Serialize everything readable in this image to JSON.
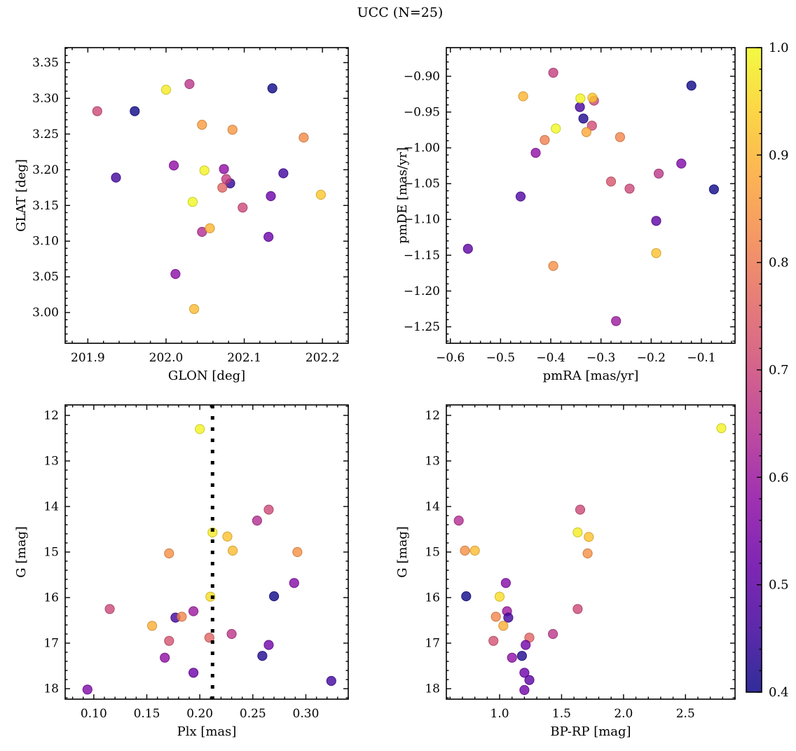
{
  "title": "UCC (N=25)",
  "colorbar": {
    "min": 0.4,
    "max": 1.0,
    "tick_values": [
      1.0,
      0.9,
      0.8,
      0.7,
      0.6,
      0.5,
      0.4
    ],
    "tick_labels": [
      "1.0",
      "0.9",
      "0.8",
      "0.7",
      "0.6",
      "0.5",
      "0.4"
    ],
    "minor_step": 0.02,
    "colormap": "plasma",
    "plasma_stops": [
      "#0d0887",
      "#41049d",
      "#6a00a8",
      "#8f0da4",
      "#b12a90",
      "#cc4778",
      "#e16462",
      "#f2844b",
      "#fca636",
      "#fcce25",
      "#f0f921"
    ]
  },
  "chart_data": [
    {
      "type": "scatter",
      "name": "position-panel",
      "xlabel": "GLON [deg]",
      "ylabel": "GLAT [deg]",
      "xlim": [
        201.871,
        202.233
      ],
      "ylim": [
        2.957,
        3.371
      ],
      "xticks": [
        201.9,
        202.0,
        202.1,
        202.2
      ],
      "xtick_labels": [
        "201.9",
        "202.0",
        "202.1",
        "202.2"
      ],
      "yticks": [
        3.0,
        3.05,
        3.1,
        3.15,
        3.2,
        3.25,
        3.3,
        3.35
      ],
      "ytick_labels": [
        "3.00",
        "3.05",
        "3.10",
        "3.15",
        "3.20",
        "3.25",
        "3.30",
        "3.35"
      ],
      "x_minor_step": 0.02,
      "y_minor_step": 0.01,
      "points": [
        [
          201.912,
          3.282,
          0.7
        ],
        [
          201.936,
          3.189,
          0.46
        ],
        [
          201.96,
          3.282,
          0.4
        ],
        [
          202.0,
          3.312,
          0.98
        ],
        [
          202.03,
          3.32,
          0.66
        ],
        [
          202.136,
          3.314,
          0.4
        ],
        [
          202.046,
          3.263,
          0.86
        ],
        [
          202.085,
          3.256,
          0.85
        ],
        [
          202.176,
          3.245,
          0.83
        ],
        [
          202.01,
          3.206,
          0.58
        ],
        [
          202.074,
          3.201,
          0.58
        ],
        [
          202.049,
          3.199,
          0.99
        ],
        [
          202.15,
          3.195,
          0.46
        ],
        [
          202.082,
          3.181,
          0.44
        ],
        [
          202.077,
          3.187,
          0.68
        ],
        [
          202.072,
          3.175,
          0.76
        ],
        [
          202.198,
          3.165,
          0.93
        ],
        [
          202.134,
          3.163,
          0.52
        ],
        [
          202.034,
          3.155,
          1.0
        ],
        [
          202.098,
          3.147,
          0.7
        ],
        [
          202.046,
          3.113,
          0.64
        ],
        [
          202.056,
          3.118,
          0.9
        ],
        [
          202.131,
          3.106,
          0.52
        ],
        [
          202.012,
          3.054,
          0.57
        ],
        [
          202.036,
          3.005,
          0.91
        ]
      ]
    },
    {
      "type": "scatter",
      "name": "proper-motion-panel",
      "xlabel": "pmRA [mas/yr]",
      "ylabel": "pmDE [mas/yr]",
      "xlim": [
        -0.608,
        -0.033
      ],
      "ylim": [
        -1.273,
        -0.86
      ],
      "xticks": [
        -0.6,
        -0.5,
        -0.4,
        -0.3,
        -0.2,
        -0.1
      ],
      "xtick_labels": [
        "−0.6",
        "−0.5",
        "−0.4",
        "−0.3",
        "−0.2",
        "−0.1"
      ],
      "yticks": [
        -1.25,
        -1.2,
        -1.15,
        -1.1,
        -1.05,
        -1.0,
        -0.95,
        -0.9
      ],
      "ytick_labels": [
        "−1.25",
        "−1.20",
        "−1.15",
        "−1.10",
        "−1.05",
        "−1.00",
        "−0.95",
        "−0.90"
      ],
      "x_minor_step": 0.02,
      "y_minor_step": 0.01,
      "points": [
        [
          -0.395,
          -0.895,
          0.68
        ],
        [
          -0.12,
          -0.913,
          0.4
        ],
        [
          -0.455,
          -0.928,
          0.9
        ],
        [
          -0.342,
          -0.943,
          0.47
        ],
        [
          -0.335,
          -0.959,
          0.42
        ],
        [
          -0.314,
          -0.934,
          0.7
        ],
        [
          -0.317,
          -0.93,
          0.93
        ],
        [
          -0.341,
          -0.931,
          0.99
        ],
        [
          -0.39,
          -0.973,
          1.0
        ],
        [
          -0.318,
          -0.969,
          0.71
        ],
        [
          -0.329,
          -0.978,
          0.88
        ],
        [
          -0.412,
          -0.989,
          0.81
        ],
        [
          -0.262,
          -0.985,
          0.82
        ],
        [
          -0.43,
          -1.007,
          0.58
        ],
        [
          -0.14,
          -1.022,
          0.55
        ],
        [
          -0.185,
          -1.036,
          0.66
        ],
        [
          -0.28,
          -1.047,
          0.73
        ],
        [
          -0.243,
          -1.057,
          0.7
        ],
        [
          -0.075,
          -1.058,
          0.4
        ],
        [
          -0.46,
          -1.068,
          0.48
        ],
        [
          -0.19,
          -1.102,
          0.5
        ],
        [
          -0.565,
          -1.141,
          0.5
        ],
        [
          -0.19,
          -1.147,
          0.92
        ],
        [
          -0.395,
          -1.165,
          0.84
        ],
        [
          -0.27,
          -1.242,
          0.6
        ]
      ]
    },
    {
      "type": "scatter",
      "name": "parallax-panel",
      "xlabel": "Plx [mas]",
      "ylabel": "G [mag]",
      "xlim": [
        0.073,
        0.34
      ],
      "ylim": [
        18.23,
        11.77
      ],
      "xticks": [
        0.1,
        0.15,
        0.2,
        0.25,
        0.3
      ],
      "xtick_labels": [
        "0.10",
        "0.15",
        "0.20",
        "0.25",
        "0.30"
      ],
      "yticks": [
        12,
        13,
        14,
        15,
        16,
        17,
        18
      ],
      "ytick_labels": [
        "12",
        "13",
        "14",
        "15",
        "16",
        "17",
        "18"
      ],
      "x_minor_step": 0.01,
      "y_minor_step": 0.2,
      "vline": {
        "x": 0.212,
        "style": "dotted",
        "color": "#000000"
      },
      "points": [
        [
          0.2,
          12.3,
          0.99
        ],
        [
          0.265,
          14.07,
          0.7
        ],
        [
          0.254,
          14.31,
          0.64
        ],
        [
          0.212,
          14.57,
          0.98
        ],
        [
          0.226,
          14.66,
          0.92
        ],
        [
          0.231,
          14.97,
          0.91
        ],
        [
          0.171,
          15.03,
          0.84
        ],
        [
          0.292,
          15.0,
          0.84
        ],
        [
          0.289,
          15.68,
          0.56
        ],
        [
          0.27,
          15.97,
          0.4
        ],
        [
          0.21,
          15.98,
          0.96
        ],
        [
          0.115,
          16.25,
          0.7
        ],
        [
          0.194,
          16.3,
          0.6
        ],
        [
          0.177,
          16.44,
          0.46
        ],
        [
          0.183,
          16.42,
          0.82
        ],
        [
          0.155,
          16.62,
          0.89
        ],
        [
          0.23,
          16.8,
          0.66
        ],
        [
          0.209,
          16.88,
          0.76
        ],
        [
          0.171,
          16.95,
          0.72
        ],
        [
          0.265,
          17.04,
          0.53
        ],
        [
          0.259,
          17.28,
          0.42
        ],
        [
          0.167,
          17.32,
          0.58
        ],
        [
          0.194,
          17.65,
          0.52
        ],
        [
          0.094,
          18.02,
          0.55
        ],
        [
          0.324,
          17.83,
          0.46
        ]
      ]
    },
    {
      "type": "scatter",
      "name": "cmd-panel",
      "xlabel": "BP-RP [mag]",
      "ylabel": "G [mag]",
      "xlim": [
        0.57,
        2.9
      ],
      "ylim": [
        18.23,
        11.77
      ],
      "xticks": [
        1.0,
        1.5,
        2.0,
        2.5
      ],
      "xtick_labels": [
        "1.0",
        "1.5",
        "2.0",
        "2.5"
      ],
      "yticks": [
        12,
        13,
        14,
        15,
        16,
        17,
        18
      ],
      "ytick_labels": [
        "12",
        "13",
        "14",
        "15",
        "16",
        "17",
        "18"
      ],
      "x_minor_step": 0.1,
      "y_minor_step": 0.2,
      "points": [
        [
          2.79,
          12.28,
          0.99
        ],
        [
          1.65,
          14.07,
          0.7
        ],
        [
          0.67,
          14.31,
          0.64
        ],
        [
          1.63,
          14.57,
          0.98
        ],
        [
          1.72,
          14.67,
          0.92
        ],
        [
          0.8,
          14.97,
          0.91
        ],
        [
          0.72,
          14.97,
          0.84
        ],
        [
          1.71,
          15.03,
          0.84
        ],
        [
          1.05,
          15.68,
          0.56
        ],
        [
          0.73,
          15.97,
          0.4
        ],
        [
          1.0,
          15.98,
          0.96
        ],
        [
          1.63,
          16.25,
          0.7
        ],
        [
          1.06,
          16.3,
          0.6
        ],
        [
          1.07,
          16.44,
          0.46
        ],
        [
          0.97,
          16.42,
          0.82
        ],
        [
          1.03,
          16.62,
          0.89
        ],
        [
          1.43,
          16.8,
          0.66
        ],
        [
          1.24,
          16.88,
          0.76
        ],
        [
          0.95,
          16.95,
          0.72
        ],
        [
          1.21,
          17.04,
          0.53
        ],
        [
          1.18,
          17.28,
          0.42
        ],
        [
          1.1,
          17.32,
          0.58
        ],
        [
          1.2,
          17.65,
          0.52
        ],
        [
          1.24,
          17.81,
          0.5
        ],
        [
          1.2,
          18.03,
          0.53
        ]
      ]
    }
  ]
}
